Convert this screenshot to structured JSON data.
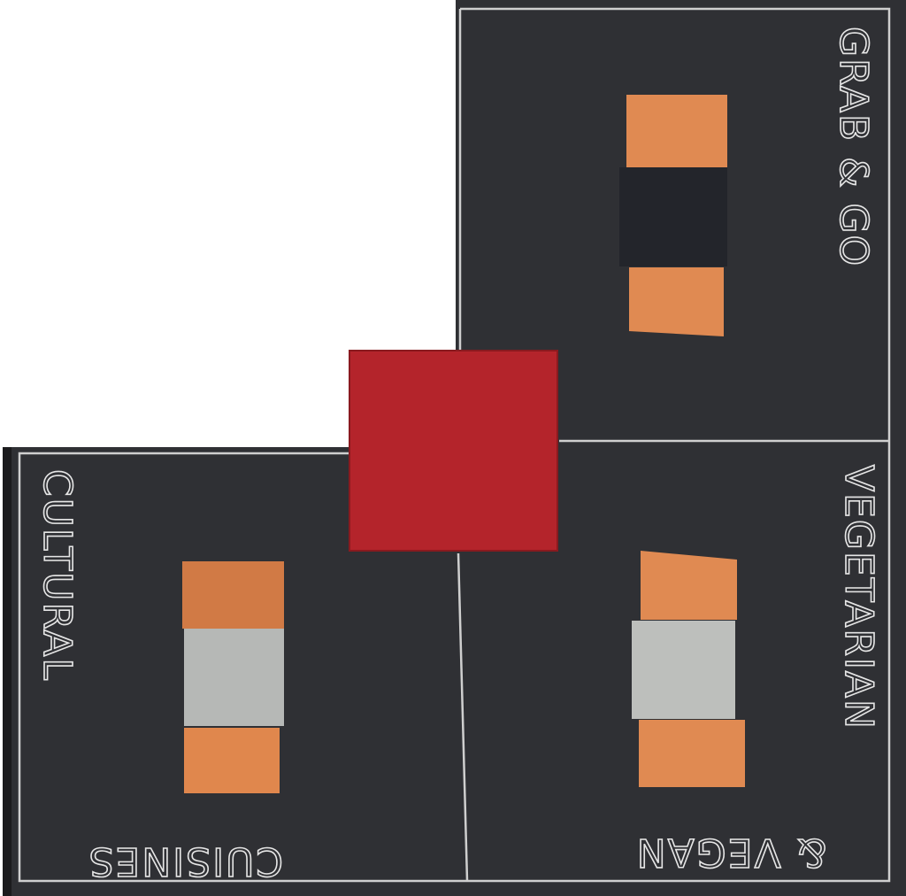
{
  "panels": [
    {
      "label": "GRAB & GO"
    },
    {
      "label": "CULTURAL",
      "sublabel": "CUISINES"
    },
    {
      "label": "VEGETARIAN",
      "sublabel": "& VEGAN"
    }
  ]
}
